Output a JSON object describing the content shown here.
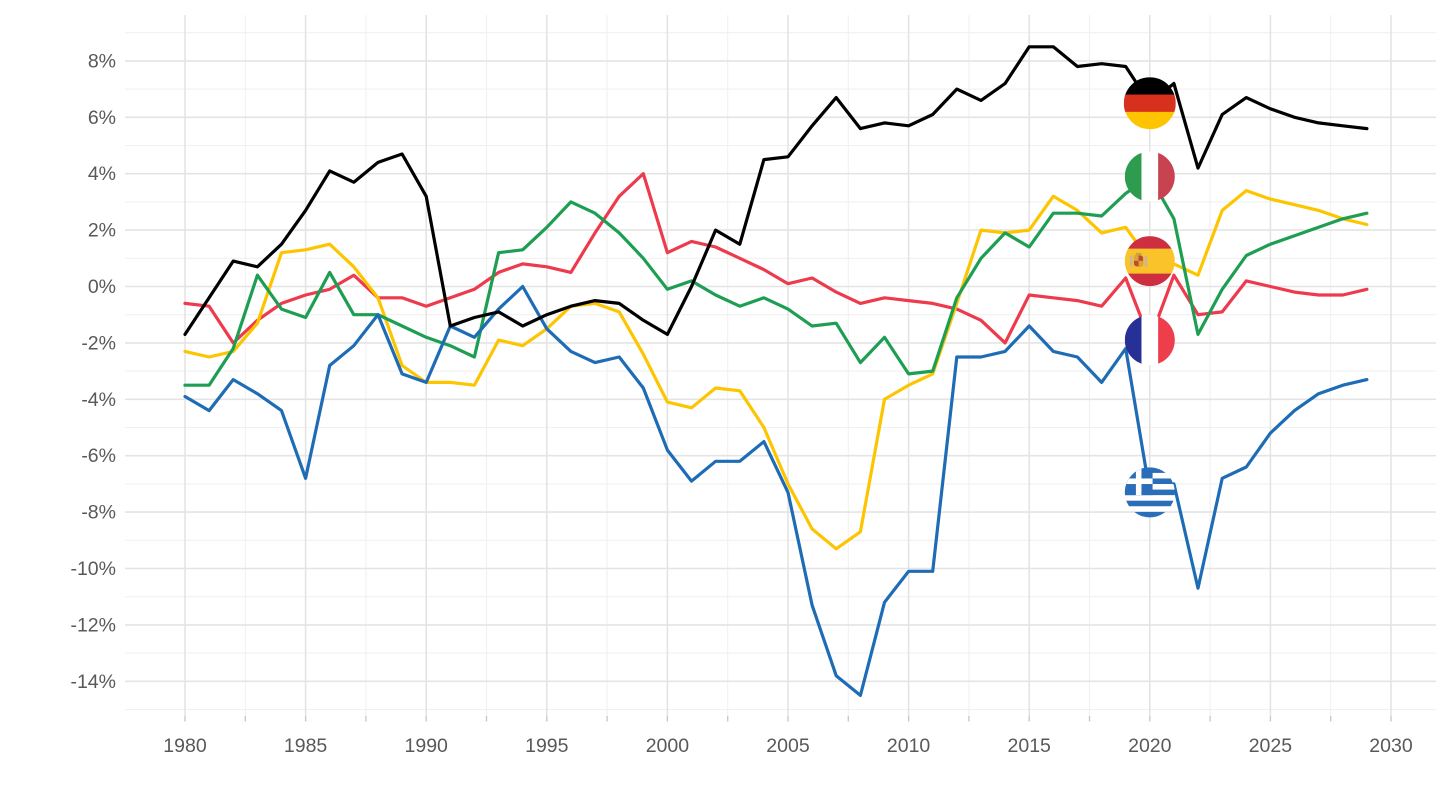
{
  "chart_data": {
    "type": "line",
    "title": "",
    "x_start": 1980,
    "x_end": 2029,
    "x_axis": {
      "tick_labels": [
        "1980",
        "1985",
        "1990",
        "1995",
        "2000",
        "2005",
        "2010",
        "2015",
        "2020",
        "2025",
        "2030"
      ],
      "tick_values": [
        1980,
        1985,
        1990,
        1995,
        2000,
        2005,
        2010,
        2015,
        2020,
        2025,
        2030
      ],
      "minor_tick_step": 2.5,
      "range": [
        1980,
        2030
      ]
    },
    "y_axis": {
      "tick_labels": [
        "8%",
        "6%",
        "4%",
        "2%",
        "0%",
        "-2%",
        "-4%",
        "-6%",
        "-8%",
        "-10%",
        "-12%",
        "-14%"
      ],
      "tick_values": [
        8,
        6,
        4,
        2,
        0,
        -2,
        -4,
        -6,
        -8,
        -10,
        -12,
        -14
      ],
      "minor_step": 1,
      "range_shown": [
        -15,
        9
      ],
      "format": "percent"
    },
    "grid": {
      "on": true,
      "major_color": "#e4e4e4",
      "minor_color": "#f1f1f1",
      "tick_color": "#c9c9c9",
      "axis_label_color": "#595959"
    },
    "legend": {
      "position": "flags-on-lines",
      "marker_year": 2020
    },
    "series": [
      {
        "name": "Germany",
        "color": "#000000",
        "flag_icon": "germany-flag-icon",
        "flag": {
          "type": "horizontal-bands",
          "colors": [
            "#000000",
            "#d7301d",
            "#ffc400"
          ],
          "ratios": [
            1,
            1,
            1
          ]
        },
        "marker_radius": 26,
        "values": [
          -1.7,
          -0.4,
          0.9,
          0.7,
          1.5,
          2.7,
          4.1,
          3.7,
          4.4,
          4.7,
          3.2,
          -1.4,
          -1.1,
          -0.9,
          -1.4,
          -1.0,
          -0.7,
          -0.5,
          -0.6,
          -1.2,
          -1.7,
          0.0,
          2.0,
          1.5,
          4.5,
          4.6,
          5.7,
          6.7,
          5.6,
          5.8,
          5.7,
          6.1,
          7.0,
          6.6,
          7.2,
          8.5,
          8.5,
          7.8,
          7.9,
          7.8,
          6.5,
          7.2,
          4.2,
          6.1,
          6.7,
          6.3,
          6.0,
          5.8,
          5.7,
          5.6
        ]
      },
      {
        "name": "Italy",
        "color": "#1d9e53",
        "flag_icon": "italy-flag-icon",
        "flag": {
          "type": "vertical-bands",
          "colors": [
            "#2e9c4f",
            "#ffffff",
            "#c84350"
          ],
          "ratios": [
            1,
            1,
            1
          ]
        },
        "marker_radius": 25,
        "values": [
          -3.5,
          -3.5,
          -2.2,
          0.4,
          -0.8,
          -1.1,
          0.5,
          -1.0,
          -1.0,
          -1.4,
          -1.8,
          -2.1,
          -2.5,
          1.2,
          1.3,
          2.1,
          3.0,
          2.6,
          1.9,
          1.0,
          -0.1,
          0.2,
          -0.3,
          -0.7,
          -0.4,
          -0.8,
          -1.4,
          -1.3,
          -2.7,
          -1.8,
          -3.1,
          -3.0,
          -0.4,
          1.0,
          1.9,
          1.4,
          2.6,
          2.6,
          2.5,
          3.3,
          3.9,
          2.4,
          -1.7,
          -0.1,
          1.1,
          1.5,
          1.8,
          2.1,
          2.4,
          2.6
        ]
      },
      {
        "name": "Spain",
        "color": "#fdc500",
        "flag_icon": "spain-flag-icon",
        "flag": {
          "type": "horizontal-bands",
          "colors": [
            "#cd2f40",
            "#fbc32a",
            "#cd2f40"
          ],
          "ratios": [
            1,
            2,
            1
          ],
          "emblem": true
        },
        "marker_radius": 25,
        "values": [
          -2.3,
          -2.5,
          -2.3,
          -1.3,
          1.2,
          1.3,
          1.5,
          0.7,
          -0.4,
          -2.8,
          -3.4,
          -3.4,
          -3.5,
          -1.9,
          -2.1,
          -1.5,
          -0.7,
          -0.6,
          -0.9,
          -2.4,
          -4.1,
          -4.3,
          -3.6,
          -3.7,
          -5.0,
          -7.0,
          -8.6,
          -9.3,
          -8.7,
          -4.0,
          -3.5,
          -3.1,
          -0.6,
          2.0,
          1.9,
          2.0,
          3.2,
          2.7,
          1.9,
          2.1,
          0.9,
          0.8,
          0.4,
          2.7,
          3.4,
          3.1,
          2.9,
          2.7,
          2.4,
          2.2
        ]
      },
      {
        "name": "France",
        "color": "#ed3a4c",
        "flag_icon": "france-flag-icon",
        "flag": {
          "type": "vertical-bands",
          "colors": [
            "#273097",
            "#ffffff",
            "#ee3e4c"
          ],
          "ratios": [
            1,
            1,
            1
          ]
        },
        "marker_radius": 25,
        "values": [
          -0.6,
          -0.7,
          -2.0,
          -1.2,
          -0.6,
          -0.3,
          -0.1,
          0.4,
          -0.4,
          -0.4,
          -0.7,
          -0.4,
          -0.1,
          0.5,
          0.8,
          0.7,
          0.5,
          1.9,
          3.2,
          4.0,
          1.2,
          1.6,
          1.4,
          1.0,
          0.6,
          0.1,
          0.3,
          -0.2,
          -0.6,
          -0.4,
          -0.5,
          -0.6,
          -0.8,
          -1.2,
          -2.0,
          -0.3,
          -0.4,
          -0.5,
          -0.7,
          0.3,
          -1.9,
          0.4,
          -1.0,
          -0.9,
          0.2,
          0.0,
          -0.2,
          -0.3,
          -0.3,
          -0.1
        ]
      },
      {
        "name": "Greece",
        "color": "#1e6cb5",
        "flag_icon": "greece-flag-icon",
        "flag": {
          "type": "striped-cross",
          "colors": [
            "#2a6db8",
            "#ffffff"
          ],
          "stripes": 9
        },
        "marker_radius": 25,
        "values": [
          -3.9,
          -4.4,
          -3.3,
          -3.8,
          -4.4,
          -6.8,
          -2.8,
          -2.1,
          -1.0,
          -3.1,
          -3.4,
          -1.4,
          -1.8,
          -0.8,
          0.0,
          -1.5,
          -2.3,
          -2.7,
          -2.5,
          -3.6,
          -5.8,
          -6.9,
          -6.2,
          -6.2,
          -5.5,
          -7.3,
          -11.3,
          -13.8,
          -14.5,
          -11.2,
          -10.1,
          -10.1,
          -2.5,
          -2.5,
          -2.3,
          -1.4,
          -2.3,
          -2.5,
          -3.4,
          -2.2,
          -7.3,
          -7.0,
          -10.7,
          -6.8,
          -6.4,
          -5.2,
          -4.4,
          -3.8,
          -3.5,
          -3.3
        ]
      }
    ]
  }
}
